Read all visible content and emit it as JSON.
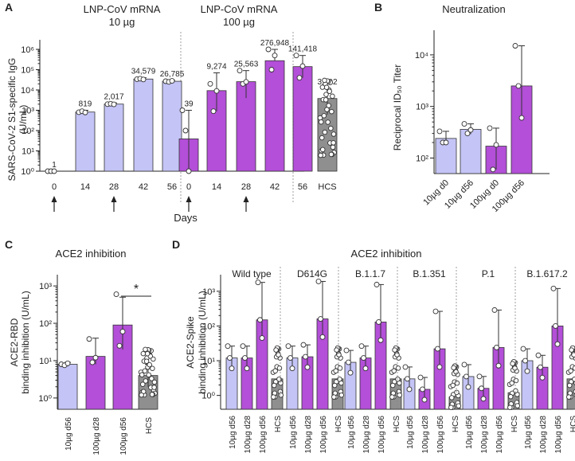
{
  "colors": {
    "light": "#c4c4f6",
    "dark": "#b34fd8",
    "gray": "#8f8f8f"
  },
  "panelA": {
    "letter": "A",
    "group1_title": "LNP-CoV mRNA",
    "group1_dose": "10 µg",
    "group2_title": "LNP-CoV mRNA",
    "group2_dose": "100 µg",
    "ylabel": "SARS-CoV-2 S1-specific IgG",
    "ylabel2": "(U/mL)",
    "xlabel": "Days",
    "yticks": [
      "10⁰",
      "10¹",
      "10²",
      "10³",
      "10⁴",
      "10⁵",
      "10⁶"
    ]
  },
  "panelB": {
    "letter": "B",
    "title": "Neutralization",
    "ylabel": "Reciprocal ID₅₀ Titer",
    "yticks": [
      "10²",
      "10³",
      "10⁴"
    ]
  },
  "panelC": {
    "letter": "C",
    "title": "ACE2 inhibition",
    "ylabel": "ACE2-RBD",
    "ylabel2": "binding inhibition (U/mL)",
    "yticks": [
      "10⁰",
      "10¹",
      "10²",
      "10³"
    ],
    "sig": "*"
  },
  "panelD": {
    "letter": "D",
    "title": "ACE2 inhibition",
    "ylabel": "ACE2-Spike",
    "ylabel2": "binding inhibition (U/mL)",
    "yticks": [
      "10⁰",
      "10¹",
      "10²",
      "10³"
    ],
    "variants": [
      "Wild type",
      "D614G",
      "B.1.1.7",
      "B.1.351",
      "P.1",
      "B.1.617.2"
    ]
  },
  "chart_data": [
    {
      "panel": "A",
      "type": "bar",
      "yscale": "log",
      "ylim": [
        1,
        1000000
      ],
      "categories": [
        "0",
        "14",
        "28",
        "42",
        "56",
        "0",
        "14",
        "28",
        "42",
        "56",
        "HCS"
      ],
      "groups": [
        "10 µg",
        "10 µg",
        "10 µg",
        "10 µg",
        "10 µg",
        "100 µg",
        "100 µg",
        "100 µg",
        "100 µg",
        "100 µg",
        "HCS"
      ],
      "values": [
        1,
        819,
        2017,
        34579,
        26785,
        39,
        9274,
        25563,
        276948,
        141418,
        3792
      ],
      "value_labels": [
        "1",
        "819",
        "2,017",
        "34,579",
        "26,785",
        "39",
        "9,274",
        "25,563",
        "276,948",
        "141,418",
        "3,792"
      ],
      "arrows_at_days": [
        "0",
        "28"
      ]
    },
    {
      "panel": "B",
      "type": "bar",
      "yscale": "log",
      "ylim": [
        50,
        30000
      ],
      "categories": [
        "10µg d0",
        "10µg d56",
        "100µg d0",
        "100µg d56"
      ],
      "values": [
        240,
        360,
        170,
        2500
      ]
    },
    {
      "panel": "C",
      "type": "bar",
      "yscale": "log",
      "ylim": [
        0.5,
        2000
      ],
      "categories": [
        "10µg d56",
        "100µg d28",
        "100µg d56",
        "HCS"
      ],
      "values": [
        8,
        13,
        90,
        4
      ],
      "significance": "100µg d56 vs HCS: *"
    },
    {
      "panel": "D",
      "type": "bar",
      "yscale": "log",
      "ylim": [
        0.4,
        3000
      ],
      "categories": [
        "10µg d56",
        "100µg d28",
        "100µg d56",
        "HCS"
      ],
      "series": [
        {
          "name": "Wild type",
          "values": [
            12,
            12,
            150,
            3
          ]
        },
        {
          "name": "D614G",
          "values": [
            12,
            13,
            160,
            3
          ]
        },
        {
          "name": "B.1.1.7",
          "values": [
            9,
            12,
            130,
            3
          ]
        },
        {
          "name": "B.1.351",
          "values": [
            3,
            1.5,
            22,
            0.9
          ]
        },
        {
          "name": "P.1",
          "values": [
            3.5,
            1.6,
            24,
            1.2
          ]
        },
        {
          "name": "B.1.617.2",
          "values": [
            10,
            6.5,
            100,
            3
          ]
        }
      ]
    }
  ]
}
